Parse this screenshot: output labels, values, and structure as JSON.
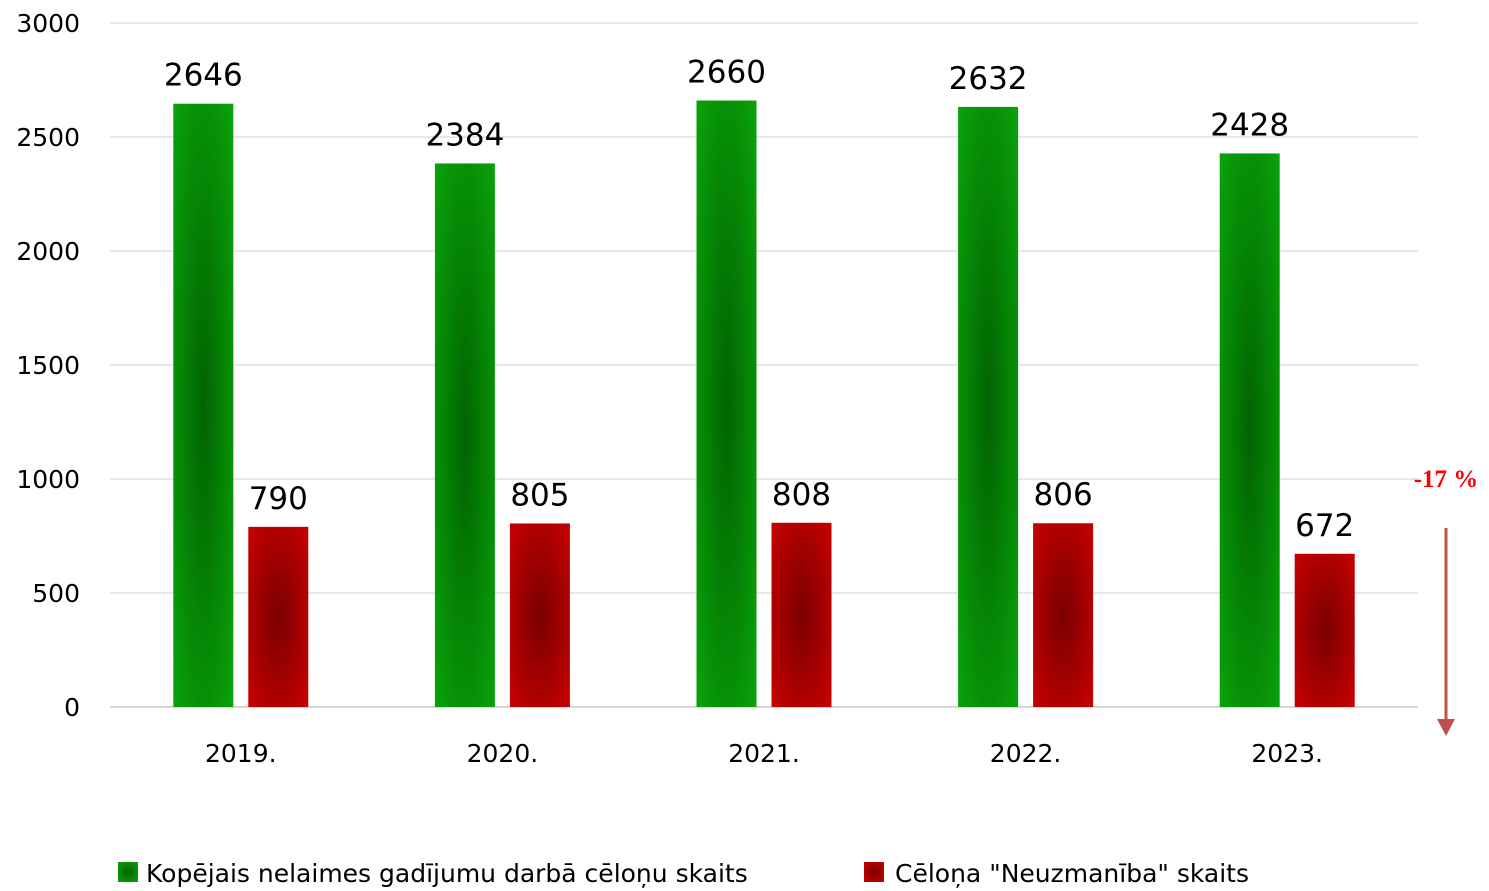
{
  "chart_data": {
    "type": "bar",
    "title": "",
    "xlabel": "",
    "ylabel": "",
    "categories": [
      "2019.",
      "2020.",
      "2021.",
      "2022.",
      "2023."
    ],
    "series": [
      {
        "name": "Kopējais nelaimes gadījumu darbā cēloņu skaits",
        "values": [
          2646,
          2384,
          2660,
          2632,
          2428
        ],
        "color": "#0a9a0a"
      },
      {
        "name": "Cēloņa \"Neuzmanība\" skaits",
        "values": [
          790,
          805,
          808,
          806,
          672
        ],
        "color": "#c00000"
      }
    ],
    "ylim": [
      0,
      3000
    ],
    "yticks": [
      0,
      500,
      1000,
      1500,
      2000,
      2500,
      3000
    ],
    "grid": true,
    "legend_position": "bottom",
    "highlight_label": {
      "series": 1,
      "index": 4,
      "color": "#c00000"
    },
    "annotation": {
      "text": "-17 %",
      "color": "#ff0000",
      "arrow_color": "#c0504d",
      "direction": "down"
    }
  }
}
